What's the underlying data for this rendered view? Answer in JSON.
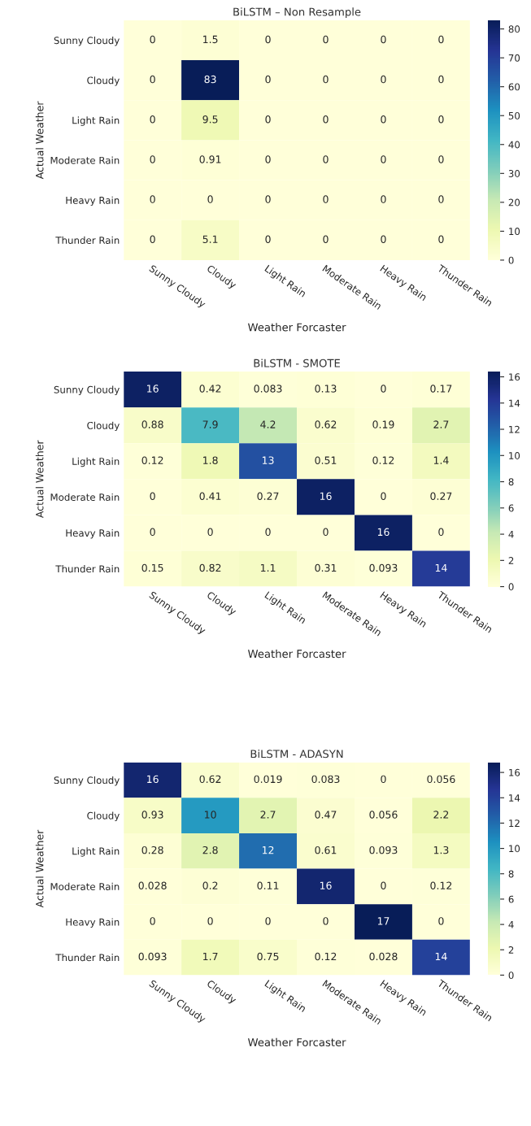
{
  "chart_data": [
    {
      "type": "heatmap",
      "title": "BiLSTM – Non Resample",
      "xlabel": "Weather Forcaster",
      "ylabel": "Actual Weather",
      "categories": [
        "Sunny Cloudy",
        "Cloudy",
        "Light Rain",
        "Moderate Rain",
        "Heavy Rain",
        "Thunder Rain"
      ],
      "y_categories": [
        "Sunny Cloudy",
        "Cloudy",
        "Light Rain",
        "Moderate Rain",
        "Heavy Rain",
        "Thunder Rain"
      ],
      "cells": [
        [
          0,
          1.5,
          0,
          0,
          0,
          0
        ],
        [
          0,
          83,
          0,
          0,
          0,
          0
        ],
        [
          0,
          9.5,
          0,
          0,
          0,
          0
        ],
        [
          0,
          0.91,
          0,
          0,
          0,
          0
        ],
        [
          0,
          0,
          0,
          0,
          0,
          0
        ],
        [
          0,
          5.1,
          0,
          0,
          0,
          0
        ]
      ],
      "clim": [
        0,
        83
      ],
      "cticks": [
        0,
        10,
        20,
        30,
        40,
        50,
        60,
        70,
        80
      ],
      "data_labels": true
    },
    {
      "type": "heatmap",
      "title": "BiLSTM - SMOTE",
      "xlabel": "Weather Forcaster",
      "ylabel": "Actual Weather",
      "categories": [
        "Sunny Cloudy",
        "Cloudy",
        "Light Rain",
        "Moderate Rain",
        "Heavy Rain",
        "Thunder Rain"
      ],
      "y_categories": [
        "Sunny Cloudy",
        "Cloudy",
        "Light Rain",
        "Moderate Rain",
        "Heavy Rain",
        "Thunder Rain"
      ],
      "cells": [
        [
          16,
          0.42,
          0.083,
          0.13,
          0,
          0.17
        ],
        [
          0.88,
          7.9,
          4.2,
          0.62,
          0.19,
          2.7
        ],
        [
          0.12,
          1.8,
          13,
          0.51,
          0.12,
          1.4
        ],
        [
          0,
          0.41,
          0.27,
          16,
          0,
          0.27
        ],
        [
          0,
          0,
          0,
          0,
          16,
          0
        ],
        [
          0.15,
          0.82,
          1.1,
          0.31,
          0.093,
          14
        ]
      ],
      "clim": [
        0,
        16.4
      ],
      "cticks": [
        0,
        2,
        4,
        6,
        8,
        10,
        12,
        14,
        16
      ],
      "data_labels": true
    },
    {
      "type": "heatmap",
      "title": "BiLSTM - ADASYN",
      "xlabel": "Weather Forcaster",
      "ylabel": "Actual Weather",
      "categories": [
        "Sunny Cloudy",
        "Cloudy",
        "Light Rain",
        "Moderate Rain",
        "Heavy Rain",
        "Thunder Rain"
      ],
      "y_categories": [
        "Sunny Cloudy",
        "Cloudy",
        "Light Rain",
        "Moderate Rain",
        "Heavy Rain",
        "Thunder Rain"
      ],
      "cells": [
        [
          16,
          0.62,
          0.019,
          0.083,
          0,
          0.056
        ],
        [
          0.93,
          10,
          2.7,
          0.47,
          0.056,
          2.2
        ],
        [
          0.28,
          2.8,
          12,
          0.61,
          0.093,
          1.3
        ],
        [
          0.028,
          0.2,
          0.11,
          16,
          0,
          0.12
        ],
        [
          0,
          0,
          0,
          0,
          17,
          0
        ],
        [
          0.093,
          1.7,
          0.75,
          0.12,
          0.028,
          14
        ]
      ],
      "clim": [
        0,
        16.8
      ],
      "cticks": [
        0,
        2,
        4,
        6,
        8,
        10,
        12,
        14,
        16
      ],
      "data_labels": true
    }
  ]
}
